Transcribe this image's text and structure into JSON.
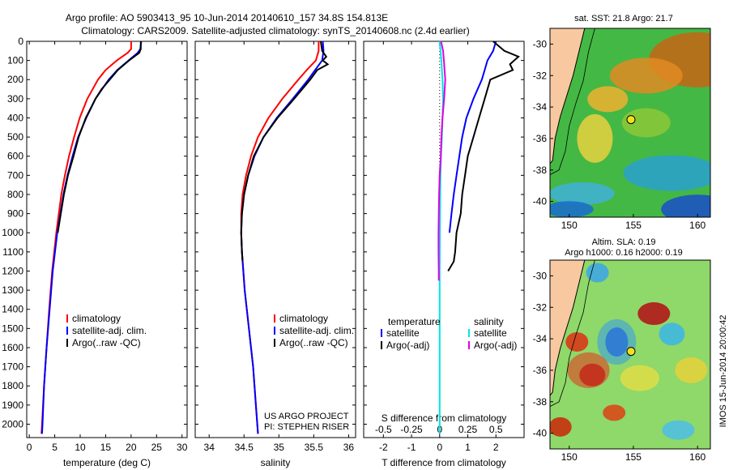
{
  "title_line1": "Argo profile: AO 5903413_95 10-Jun-2014 20140610_157 34.8S 154.813E",
  "title_line2": "Climatology: CARS2009. Satellite-adjusted climatology: synTS_20140608.nc (2.4d earlier)",
  "annotations": {
    "project": "US ARGO PROJECT",
    "pi": "PI: STEPHEN RISER"
  },
  "credit": "IMOS 15-Jun-2014 20:00:42",
  "colors": {
    "climatology": "#ff0000",
    "satellite": "#0000ff",
    "argo": "#000000",
    "sat_salinity": "#00e5e5",
    "argo_salinity": "#e000e0",
    "land": "#f8c8a0"
  },
  "chart_data": [
    {
      "type": "line",
      "xlabel": "temperature (deg C)",
      "ylabel": "",
      "xlim": [
        -0.5,
        31
      ],
      "ylim": [
        2070,
        0
      ],
      "xticks": [
        0,
        5,
        10,
        15,
        20,
        25,
        30
      ],
      "yticks": [
        0,
        100,
        200,
        300,
        400,
        500,
        600,
        700,
        800,
        900,
        1000,
        1100,
        1200,
        1300,
        1400,
        1500,
        1600,
        1700,
        1800,
        1900,
        2000
      ],
      "legend_position": "lower-right",
      "series": [
        {
          "name": "climatology",
          "color": "#ff0000",
          "depth": [
            0,
            40,
            60,
            100,
            150,
            200,
            300,
            400,
            500,
            600,
            700,
            800,
            1000,
            1200,
            1400,
            1600,
            1800,
            2000,
            2050
          ],
          "values": [
            20.0,
            20.0,
            19.3,
            17.2,
            15.0,
            13.5,
            11.4,
            9.9,
            8.8,
            7.8,
            7.0,
            6.3,
            5.3,
            4.5,
            3.9,
            3.4,
            2.9,
            2.5,
            2.4
          ]
        },
        {
          "name": "satellite-adj. clim.",
          "color": "#0000ff",
          "depth": [
            0,
            40,
            60,
            100,
            150,
            200,
            300,
            400,
            500,
            600,
            700,
            800,
            1000,
            1200,
            1400,
            1600,
            1800,
            2000,
            2050
          ],
          "values": [
            22.0,
            21.8,
            21.3,
            19.5,
            17.3,
            15.6,
            13.0,
            11.2,
            9.6,
            8.5,
            7.5,
            6.7,
            5.5,
            4.6,
            4.0,
            3.4,
            2.9,
            2.6,
            2.5
          ]
        },
        {
          "name": "Argo(..raw -QC)",
          "color": "#000000",
          "depth": [
            0,
            40,
            60,
            100,
            150,
            200,
            250,
            300,
            400,
            500,
            600,
            700,
            800,
            1000
          ],
          "values": [
            21.9,
            21.9,
            21.6,
            19.6,
            17.4,
            15.8,
            14.2,
            13.0,
            11.1,
            9.7,
            8.7,
            7.6,
            6.8,
            5.6
          ]
        }
      ]
    },
    {
      "type": "line",
      "xlabel": "salinity",
      "ylabel": "",
      "xlim": [
        33.8,
        36.1
      ],
      "ylim": [
        2070,
        0
      ],
      "xticks": [
        34,
        34.5,
        35,
        35.5,
        36
      ],
      "legend_position": "lower-right",
      "series": [
        {
          "name": "climatology",
          "color": "#ff0000",
          "depth": [
            0,
            50,
            100,
            150,
            200,
            300,
            400,
            500,
            600,
            700,
            800,
            900,
            1000,
            1100,
            1200,
            1300,
            1400,
            1500,
            1600,
            1700,
            1800,
            1900,
            2050
          ],
          "values": [
            35.57,
            35.57,
            35.53,
            35.4,
            35.28,
            35.05,
            34.85,
            34.7,
            34.6,
            34.53,
            34.48,
            34.46,
            34.46,
            34.47,
            34.49,
            34.51,
            34.54,
            34.57,
            34.6,
            34.63,
            34.65,
            34.67,
            34.7
          ]
        },
        {
          "name": "satellite-adj. clim.",
          "color": "#0000ff",
          "depth": [
            0,
            50,
            100,
            150,
            200,
            300,
            400,
            500,
            600,
            700,
            800,
            900,
            1000,
            1100,
            1200,
            1300,
            1400,
            1500,
            1600,
            1700,
            1800,
            1900,
            2050
          ],
          "values": [
            35.63,
            35.64,
            35.62,
            35.52,
            35.42,
            35.2,
            34.97,
            34.78,
            34.65,
            34.56,
            34.5,
            34.47,
            34.46,
            34.47,
            34.49,
            34.51,
            34.54,
            34.57,
            34.6,
            34.63,
            34.65,
            34.67,
            34.7
          ]
        },
        {
          "name": "Argo(..raw -QC)",
          "color": "#000000",
          "depth": [
            0,
            50,
            80,
            100,
            120,
            150,
            200,
            300,
            400,
            500,
            600,
            700,
            800,
            900,
            1000,
            1100,
            1150
          ],
          "values": [
            35.6,
            35.62,
            35.68,
            35.63,
            35.7,
            35.55,
            35.45,
            35.22,
            34.98,
            34.78,
            34.64,
            34.56,
            34.5,
            34.47,
            34.46,
            34.47,
            34.48
          ]
        }
      ]
    },
    {
      "type": "line",
      "xlabel": "T difference from climatology",
      "xlabel_top": "S difference from climatology",
      "ylabel": "",
      "xlim": [
        -2.7,
        3.0
      ],
      "ylim": [
        2070,
        0
      ],
      "xticks": [
        -2,
        -1,
        0,
        1,
        2
      ],
      "xticks_salinity": [
        -0.5,
        -0.25,
        0,
        0.25,
        0.5
      ],
      "legend_groups": [
        "temperature",
        "salinity"
      ],
      "series": [
        {
          "name": "satellite",
          "group": "temperature",
          "color": "#0000ff",
          "depth": [
            0,
            50,
            100,
            150,
            200,
            300,
            400,
            500,
            600,
            700,
            800,
            900,
            1000
          ],
          "values": [
            2.0,
            1.9,
            1.7,
            1.6,
            1.5,
            1.2,
            0.95,
            0.8,
            0.7,
            0.6,
            0.5,
            0.42,
            0.35
          ]
        },
        {
          "name": "Argo(-adj)",
          "group": "temperature",
          "color": "#000000",
          "depth": [
            0,
            50,
            80,
            120,
            150,
            200,
            300,
            400,
            500,
            600,
            700,
            800,
            900,
            1000,
            1100,
            1150,
            1200
          ],
          "values": [
            1.9,
            2.3,
            2.8,
            2.5,
            2.6,
            1.8,
            1.6,
            1.4,
            1.2,
            1.0,
            0.9,
            0.8,
            0.75,
            0.6,
            0.55,
            0.5,
            0.3
          ]
        },
        {
          "name": "satellite",
          "group": "salinity",
          "color": "#00e5e5",
          "depth": [
            0,
            100,
            200,
            300,
            400,
            500,
            600,
            700,
            800,
            1000,
            1200,
            1400,
            1600,
            1800,
            2050
          ],
          "values": [
            0.0,
            0.06,
            0.1,
            0.12,
            0.1,
            0.08,
            0.05,
            0.03,
            0.02,
            0.01,
            0.0,
            0.0,
            0.0,
            0.0,
            0.0
          ]
        },
        {
          "name": "Argo(-adj)",
          "group": "salinity",
          "color": "#e000e0",
          "depth": [
            0,
            50,
            100,
            200,
            300,
            400,
            500,
            600,
            700,
            800,
            900,
            1000,
            1100,
            1200,
            1250
          ],
          "values": [
            0.05,
            0.12,
            0.15,
            0.2,
            0.16,
            0.1,
            0.06,
            0.04,
            0.0,
            -0.02,
            -0.03,
            -0.04,
            -0.04,
            -0.03,
            -0.03
          ]
        }
      ]
    }
  ],
  "maps": {
    "sst": {
      "title": "sat. SST: 21.8 Argo: 21.7",
      "xticks": [
        150,
        155,
        160
      ],
      "yticks": [
        -30,
        -32,
        -34,
        -36,
        -38,
        -40
      ],
      "xlim": [
        148.5,
        161
      ],
      "ylim": [
        -41,
        -29
      ],
      "float_lon": 154.813,
      "float_lat": -34.8
    },
    "sla": {
      "title1": "Altim. SLA: 0.19",
      "title2": "Argo h1000: 0.16 h2000: 0.19",
      "xticks": [
        150,
        155,
        160
      ],
      "yticks": [
        -30,
        -32,
        -34,
        -36,
        -38,
        -40
      ],
      "xlim": [
        148.5,
        161
      ],
      "ylim": [
        -41,
        -29
      ],
      "float_lon": 154.813,
      "float_lat": -34.8
    }
  }
}
